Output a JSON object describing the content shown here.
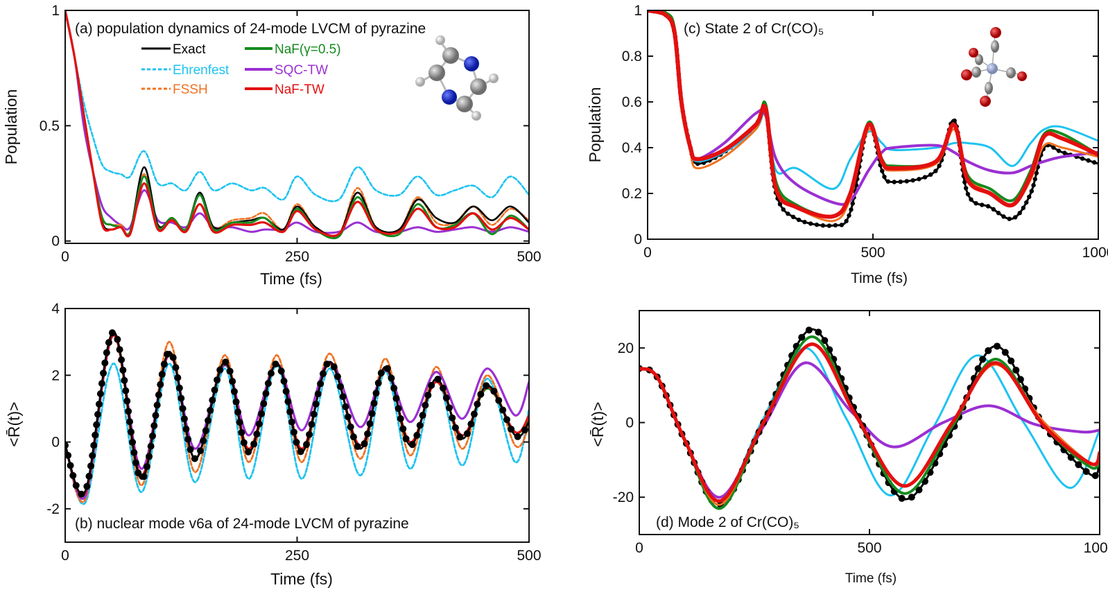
{
  "styles": {
    "Exact": {
      "color": "#000000"
    },
    "Ehrenfest": {
      "color": "#1ec3f0"
    },
    "NaF(γ=0.5)": {
      "color": "#158a1e"
    },
    "SQC-TW": {
      "color": "#9b30d2"
    },
    "FSSH": {
      "color": "#f07222"
    },
    "NaF-TW": {
      "color": "#e3100f"
    }
  },
  "legend": [
    "Exact",
    "NaF(γ=0.5)",
    "Ehrenfest",
    "SQC-TW",
    "FSSH",
    "NaF-TW"
  ],
  "chart_data": [
    {
      "id": "a",
      "type": "line",
      "title": "(a) population dynamics of 24-mode LVCM of pyrazine",
      "xlabel": "Time (fs)",
      "ylabel": "Population",
      "xlim": [
        0,
        500
      ],
      "ylim": [
        -0.01,
        1
      ],
      "xticks": [
        "0",
        "250",
        "500"
      ],
      "xtick_values": [
        0,
        250,
        500
      ],
      "yticks": [
        "0",
        "0.5",
        "1"
      ],
      "ytick_values": [
        0,
        0.5,
        1
      ],
      "dashed": [
        "Ehrenfest",
        "FSSH"
      ],
      "markers": [],
      "legend_placement": "top-center",
      "x": [
        0,
        10,
        20,
        30,
        40,
        50,
        60,
        70,
        85,
        100,
        115,
        130,
        145,
        160,
        180,
        200,
        215,
        235,
        250,
        270,
        295,
        315,
        335,
        360,
        380,
        400,
        420,
        440,
        460,
        480,
        500
      ],
      "series": [
        {
          "name": "Ehrenfest",
          "values": [
            1,
            0.8,
            0.6,
            0.45,
            0.33,
            0.3,
            0.29,
            0.28,
            0.39,
            0.25,
            0.25,
            0.22,
            0.3,
            0.22,
            0.25,
            0.22,
            0.23,
            0.18,
            0.28,
            0.2,
            0.18,
            0.32,
            0.22,
            0.2,
            0.28,
            0.2,
            0.22,
            0.24,
            0.19,
            0.28,
            0.2
          ]
        },
        {
          "name": "SQC-TW",
          "values": [
            1,
            0.8,
            0.5,
            0.3,
            0.15,
            0.1,
            0.07,
            0.06,
            0.22,
            0.09,
            0.08,
            0.06,
            0.12,
            0.06,
            0.06,
            0.04,
            0.05,
            0.05,
            0.08,
            0.04,
            0.04,
            0.08,
            0.04,
            0.04,
            0.06,
            0.04,
            0.05,
            0.06,
            0.04,
            0.06,
            0.04
          ]
        },
        {
          "name": "FSSH",
          "values": [
            1,
            0.8,
            0.55,
            0.3,
            0.1,
            0.07,
            0.07,
            0.04,
            0.29,
            0.06,
            0.1,
            0.05,
            0.2,
            0.06,
            0.09,
            0.1,
            0.12,
            0.05,
            0.16,
            0.06,
            0.03,
            0.23,
            0.06,
            0.05,
            0.19,
            0.08,
            0.08,
            0.15,
            0.07,
            0.14,
            0.09
          ]
        },
        {
          "name": "Exact",
          "values": [
            1,
            0.8,
            0.55,
            0.3,
            0.08,
            0.05,
            0.06,
            0.04,
            0.32,
            0.07,
            0.1,
            0.05,
            0.21,
            0.06,
            0.08,
            0.09,
            0.1,
            0.05,
            0.15,
            0.06,
            0.03,
            0.21,
            0.06,
            0.05,
            0.18,
            0.1,
            0.08,
            0.15,
            0.09,
            0.15,
            0.08
          ]
        },
        {
          "name": "NaF(γ=0.5)",
          "values": [
            1,
            0.8,
            0.55,
            0.3,
            0.1,
            0.07,
            0.06,
            0.04,
            0.28,
            0.06,
            0.1,
            0.05,
            0.2,
            0.05,
            0.08,
            0.08,
            0.1,
            0.04,
            0.14,
            0.05,
            0.02,
            0.19,
            0.05,
            0.03,
            0.16,
            0.06,
            0.07,
            0.12,
            0.03,
            0.11,
            0.05
          ]
        },
        {
          "name": "NaF-TW",
          "values": [
            1,
            0.8,
            0.55,
            0.3,
            0.07,
            0.05,
            0.06,
            0.03,
            0.25,
            0.05,
            0.09,
            0.04,
            0.16,
            0.04,
            0.07,
            0.07,
            0.08,
            0.04,
            0.13,
            0.05,
            0.03,
            0.17,
            0.05,
            0.04,
            0.14,
            0.06,
            0.06,
            0.12,
            0.05,
            0.1,
            0.05
          ]
        }
      ]
    },
    {
      "id": "b",
      "type": "line",
      "title": "(b) nuclear mode v6a of 24-mode LVCM of pyrazine",
      "xlabel": "Time (fs)",
      "ylabel": "<R̄(t)>",
      "xlim": [
        0,
        500
      ],
      "ylim": [
        -3,
        4
      ],
      "xticks": [
        "0",
        "250",
        "500"
      ],
      "xtick_values": [
        0,
        250,
        500
      ],
      "yticks": [
        "-2",
        "0",
        "2",
        "4"
      ],
      "ytick_values": [
        -2,
        0,
        2,
        4
      ],
      "dashed": [
        "Ehrenfest",
        "FSSH"
      ],
      "markers": [
        "Exact"
      ],
      "x": [
        0,
        22,
        52,
        82,
        112,
        140,
        172,
        198,
        228,
        255,
        285,
        318,
        345,
        372,
        400,
        428,
        455,
        485,
        500
      ],
      "series": [
        {
          "name": "Ehrenfest",
          "values": [
            -0.1,
            -1.8,
            2.35,
            -1.5,
            2.35,
            -1.2,
            2.2,
            -1.1,
            2.3,
            -1.1,
            2.2,
            -1.0,
            2.1,
            -0.8,
            1.9,
            -0.7,
            1.9,
            -0.6,
            1.0
          ]
        },
        {
          "name": "FSSH",
          "values": [
            -0.1,
            -1.7,
            3.2,
            -1.3,
            3.0,
            -0.9,
            2.6,
            -0.6,
            2.6,
            -0.6,
            2.65,
            -0.5,
            2.5,
            -0.4,
            2.25,
            -0.2,
            2.0,
            -0.1,
            0.5
          ]
        },
        {
          "name": "SQC-TW",
          "values": [
            -0.1,
            -1.6,
            3.2,
            -0.8,
            2.6,
            -0.2,
            2.3,
            0.2,
            2.35,
            0.35,
            2.4,
            0.45,
            2.15,
            0.6,
            2.1,
            0.7,
            2.2,
            0.8,
            1.8
          ]
        },
        {
          "name": "NaF(γ=0.5)",
          "values": [
            -0.1,
            -1.5,
            3.2,
            -1.0,
            2.65,
            -0.5,
            2.35,
            -0.2,
            2.35,
            -0.2,
            2.35,
            -0.1,
            2.2,
            0,
            1.8,
            0.2,
            1.6,
            0.3,
            0.7
          ]
        },
        {
          "name": "NaF-TW",
          "values": [
            -0.1,
            -1.5,
            3.2,
            -1.0,
            2.65,
            -0.5,
            2.4,
            -0.2,
            2.35,
            -0.2,
            2.35,
            -0.1,
            2.2,
            0,
            1.8,
            0.2,
            1.65,
            0.3,
            0.8
          ]
        },
        {
          "name": "Exact",
          "values": [
            -0.1,
            -1.45,
            3.3,
            -1.1,
            2.7,
            -0.5,
            2.4,
            -0.3,
            2.35,
            -0.3,
            2.4,
            -0.2,
            2.25,
            -0.1,
            1.9,
            0.1,
            1.7,
            0.2,
            0.6
          ]
        }
      ]
    },
    {
      "id": "c",
      "type": "line",
      "title": "(c) State 2 of Cr(CO)₅",
      "xlabel": "Time (fs)",
      "ylabel": "Population",
      "xlim": [
        0,
        1000
      ],
      "ylim": [
        0,
        1
      ],
      "xticks": [
        "0",
        "500",
        "1000"
      ],
      "xtick_values": [
        0,
        500,
        1000
      ],
      "yticks": [
        "0",
        "0.2",
        "0.4",
        "0.6",
        "0.8",
        "1"
      ],
      "ytick_values": [
        0,
        0.2,
        0.4,
        0.6,
        0.8,
        1
      ],
      "dashed": [],
      "markers": [
        "Exact"
      ],
      "x": [
        0,
        40,
        60,
        75,
        95,
        110,
        170,
        240,
        262,
        285,
        330,
        412,
        450,
        490,
        520,
        545,
        640,
        680,
        710,
        760,
        810,
        850,
        880,
        920,
        1000
      ],
      "series": [
        {
          "name": "Exact",
          "values": [
            1,
            0.98,
            0.9,
            0.6,
            0.4,
            0.33,
            0.38,
            0.5,
            0.57,
            0.2,
            0.09,
            0.06,
            0.12,
            0.5,
            0.3,
            0.25,
            0.3,
            0.52,
            0.2,
            0.14,
            0.09,
            0.2,
            0.4,
            0.38,
            0.33
          ]
        },
        {
          "name": "Ehrenfest",
          "values": [
            1,
            0.98,
            0.9,
            0.6,
            0.4,
            0.34,
            0.38,
            0.48,
            0.55,
            0.3,
            0.31,
            0.22,
            0.35,
            0.47,
            0.42,
            0.39,
            0.4,
            0.42,
            0.42,
            0.4,
            0.32,
            0.42,
            0.48,
            0.49,
            0.43
          ]
        },
        {
          "name": "SQC-TW",
          "values": [
            1,
            0.98,
            0.9,
            0.6,
            0.4,
            0.35,
            0.42,
            0.55,
            0.54,
            0.35,
            0.24,
            0.16,
            0.17,
            0.3,
            0.38,
            0.4,
            0.41,
            0.38,
            0.34,
            0.3,
            0.29,
            0.32,
            0.34,
            0.36,
            0.38
          ]
        },
        {
          "name": "FSSH",
          "values": [
            1,
            0.98,
            0.9,
            0.6,
            0.38,
            0.31,
            0.36,
            0.48,
            0.56,
            0.23,
            0.14,
            0.08,
            0.18,
            0.48,
            0.33,
            0.3,
            0.33,
            0.48,
            0.28,
            0.2,
            0.15,
            0.26,
            0.41,
            0.4,
            0.36
          ]
        },
        {
          "name": "NaF(γ=0.5)",
          "values": [
            1,
            0.99,
            0.92,
            0.6,
            0.4,
            0.35,
            0.39,
            0.5,
            0.59,
            0.25,
            0.15,
            0.1,
            0.2,
            0.51,
            0.35,
            0.32,
            0.34,
            0.5,
            0.28,
            0.22,
            0.17,
            0.3,
            0.46,
            0.46,
            0.37
          ]
        },
        {
          "name": "NaF-TW",
          "values": [
            1,
            0.98,
            0.9,
            0.6,
            0.4,
            0.35,
            0.39,
            0.5,
            0.57,
            0.22,
            0.14,
            0.1,
            0.2,
            0.5,
            0.34,
            0.31,
            0.34,
            0.5,
            0.26,
            0.2,
            0.15,
            0.28,
            0.45,
            0.44,
            0.37
          ]
        }
      ]
    },
    {
      "id": "d",
      "type": "line",
      "title": "(d)  Mode 2 of Cr(CO)₅",
      "xlabel": "Time (fs)",
      "ylabel": "<R̄(t)>",
      "xlim": [
        0,
        1000
      ],
      "ylim": [
        -30,
        30
      ],
      "xticks": [
        "0",
        "500",
        "1000"
      ],
      "xtick_values": [
        0,
        500,
        1000
      ],
      "yticks": [
        "-20",
        "0",
        "20"
      ],
      "ytick_values": [
        -20,
        0,
        20
      ],
      "dashed": [],
      "markers": [
        "Exact"
      ],
      "x": [
        0,
        40,
        100,
        176,
        270,
        374,
        470,
        575,
        680,
        774,
        880,
        981,
        1000
      ],
      "series": [
        {
          "name": "Ehrenfest",
          "x": [
            0,
            40,
            100,
            176,
            265,
            360,
            450,
            545,
            640,
            735,
            835,
            935,
            1000
          ],
          "values": [
            14.5,
            12,
            -5,
            -21,
            0,
            20,
            1,
            -19.5,
            -1,
            18,
            0,
            -17.5,
            -2
          ]
        },
        {
          "name": "SQC-TW",
          "x": [
            0,
            40,
            100,
            176,
            270,
            360,
            460,
            550,
            660,
            760,
            860,
            960,
            1000
          ],
          "values": [
            14.5,
            12,
            -5,
            -20,
            -1,
            16,
            3,
            -6.5,
            0,
            4.5,
            -0.5,
            -2.5,
            -2
          ]
        },
        {
          "name": "Exact",
          "values": [
            14.5,
            12,
            -5,
            -22,
            0,
            25,
            3,
            -20.5,
            -2,
            20.5,
            -1,
            -14,
            -10
          ]
        },
        {
          "name": "NaF(γ=0.5)",
          "values": [
            14.5,
            12,
            -5,
            -23,
            0,
            23,
            2,
            -19,
            -1,
            17,
            -1,
            -12,
            -9
          ]
        },
        {
          "name": "FSSH",
          "values": [
            14.5,
            12,
            -5,
            -22,
            0,
            21,
            2,
            -17,
            0,
            15.5,
            0,
            -11,
            -9
          ]
        },
        {
          "name": "NaF-TW",
          "values": [
            14.5,
            12,
            -5,
            -21,
            0,
            21,
            2,
            -17,
            0,
            16,
            -1,
            -11,
            -8
          ]
        }
      ]
    }
  ]
}
